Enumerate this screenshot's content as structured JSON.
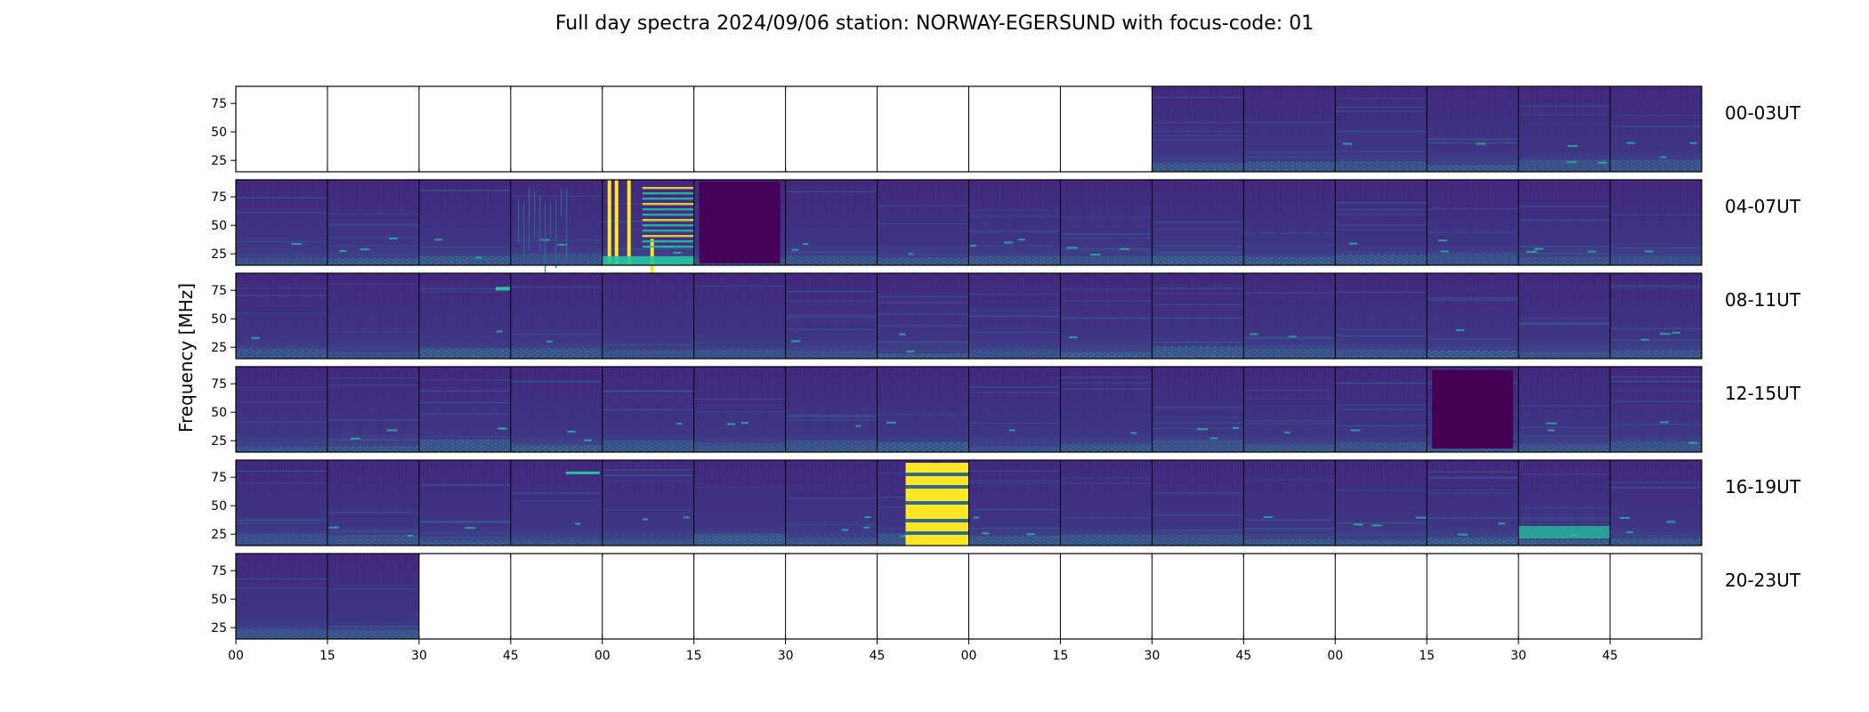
{
  "chart_data": {
    "type": "heatmap",
    "title": "Full day spectra 2024/09/06 station: NORWAY-EGERSUND with focus-code: 01",
    "ylabel": "Frequency [MHz]",
    "xlabel": "",
    "ylim": [
      15,
      90
    ],
    "yticks": [
      "25",
      "50",
      "75"
    ],
    "xticks": [
      "00",
      "15",
      "30",
      "45",
      "00",
      "15",
      "30",
      "45",
      "00",
      "15",
      "30",
      "45",
      "00",
      "15",
      "30",
      "45"
    ],
    "colormap": "viridis",
    "colors": {
      "low": "#440154",
      "bg": "#3e2a7e",
      "mid": "#31688e",
      "cyan": "#26c3a0",
      "high": "#fde725"
    },
    "panels_per_row": 16,
    "panel_minutes": 15,
    "rows": [
      {
        "label": "00-03UT",
        "data_from_panel": 10
      },
      {
        "label": "04-07UT",
        "data_from_panel": 0
      },
      {
        "label": "08-11UT",
        "data_from_panel": 0
      },
      {
        "label": "12-15UT",
        "data_from_panel": 0
      },
      {
        "label": "16-19UT",
        "data_from_panel": 0
      },
      {
        "label": "20-23UT",
        "data_from_panel": 0,
        "data_to_panel": 2
      }
    ]
  }
}
